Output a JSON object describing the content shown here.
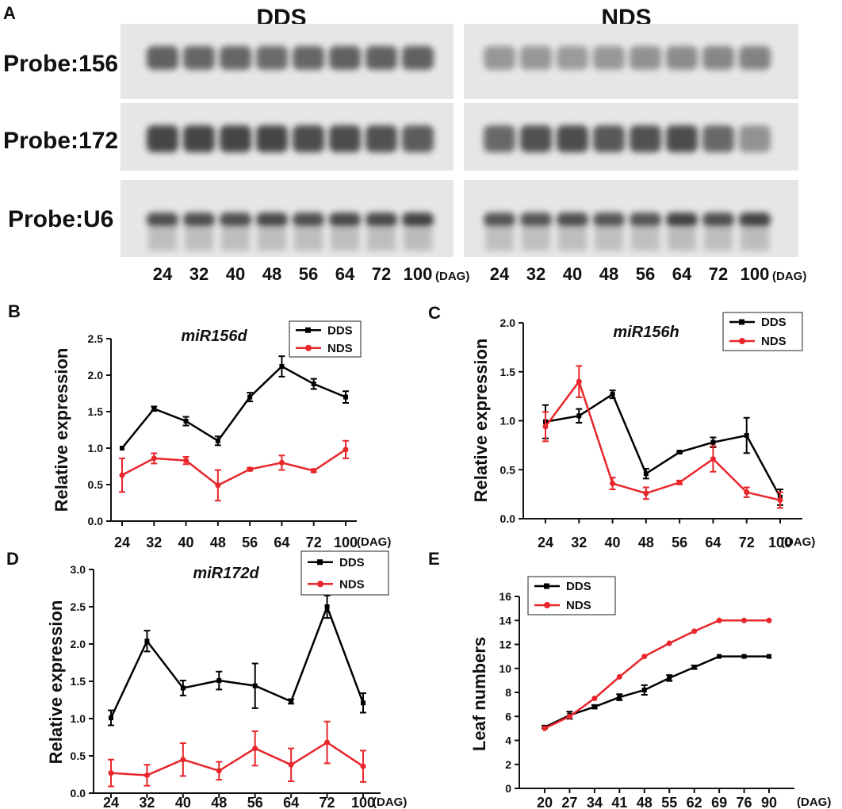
{
  "figure": {
    "panel_a": {
      "letter": "A",
      "titles": [
        "DDS",
        "NDS"
      ],
      "probes": [
        "Probe:156",
        "Probe:172",
        "Probe:U6"
      ],
      "lanes": [
        "24",
        "32",
        "40",
        "48",
        "56",
        "64",
        "72",
        "100"
      ],
      "unit": "(DAG)"
    }
  },
  "chart_data": [
    {
      "id": "B",
      "letter": "B",
      "type": "line",
      "title": "miR156d",
      "xlabel": "(DAG)",
      "ylabel": "Relative expression",
      "categories": [
        "24",
        "32",
        "40",
        "48",
        "56",
        "64",
        "72",
        "100"
      ],
      "ylim": [
        0,
        2.5
      ],
      "yticks": [
        "0.0",
        "0.5",
        "1.0",
        "1.5",
        "2.0",
        "2.5"
      ],
      "legend_position": "top-right",
      "series": [
        {
          "name": "DDS",
          "color": "#000000",
          "marker": "square",
          "values": [
            1.0,
            1.54,
            1.37,
            1.1,
            1.7,
            2.12,
            1.88,
            1.7
          ],
          "errors": [
            0.0,
            0.03,
            0.06,
            0.06,
            0.06,
            0.14,
            0.07,
            0.08
          ]
        },
        {
          "name": "NDS",
          "color": "#e8262b",
          "marker": "circle",
          "values": [
            0.63,
            0.86,
            0.83,
            0.49,
            0.71,
            0.8,
            0.69,
            0.98
          ],
          "errors": [
            0.23,
            0.07,
            0.05,
            0.21,
            0.02,
            0.1,
            0.02,
            0.12
          ]
        }
      ]
    },
    {
      "id": "C",
      "letter": "C",
      "type": "line",
      "title": "miR156h",
      "xlabel": "(DAG)",
      "ylabel": "Relative expression",
      "categories": [
        "24",
        "32",
        "40",
        "48",
        "56",
        "64",
        "72",
        "100"
      ],
      "ylim": [
        0,
        2.0
      ],
      "yticks": [
        "0.0",
        "0.5",
        "1.0",
        "1.5",
        "2.0"
      ],
      "legend_position": "top-right",
      "series": [
        {
          "name": "DDS",
          "color": "#000000",
          "marker": "square",
          "values": [
            0.99,
            1.05,
            1.27,
            0.46,
            0.68,
            0.78,
            0.85,
            0.22
          ],
          "errors": [
            0.17,
            0.07,
            0.04,
            0.05,
            0.01,
            0.05,
            0.18,
            0.08
          ]
        },
        {
          "name": "NDS",
          "color": "#e8262b",
          "marker": "circle",
          "values": [
            0.94,
            1.4,
            0.36,
            0.26,
            0.37,
            0.61,
            0.27,
            0.19
          ],
          "errors": [
            0.15,
            0.16,
            0.06,
            0.06,
            0.02,
            0.13,
            0.05,
            0.08
          ]
        }
      ]
    },
    {
      "id": "D",
      "letter": "D",
      "type": "line",
      "title": "miR172d",
      "xlabel": "(DAG)",
      "ylabel": "Relative expression",
      "categories": [
        "24",
        "32",
        "40",
        "48",
        "56",
        "64",
        "72",
        "100"
      ],
      "ylim": [
        0,
        3.0
      ],
      "yticks": [
        "0.0",
        "0.5",
        "1.0",
        "1.5",
        "2.0",
        "2.5",
        "3.0"
      ],
      "legend_position": "top-right",
      "series": [
        {
          "name": "DDS",
          "color": "#000000",
          "marker": "square",
          "values": [
            1.01,
            2.04,
            1.41,
            1.51,
            1.44,
            1.23,
            2.5,
            1.21
          ],
          "errors": [
            0.1,
            0.14,
            0.1,
            0.12,
            0.3,
            0.03,
            0.15,
            0.13
          ]
        },
        {
          "name": "NDS",
          "color": "#e8262b",
          "marker": "circle",
          "values": [
            0.27,
            0.24,
            0.45,
            0.3,
            0.6,
            0.38,
            0.68,
            0.36
          ],
          "errors": [
            0.18,
            0.14,
            0.22,
            0.12,
            0.23,
            0.22,
            0.28,
            0.21
          ]
        }
      ]
    },
    {
      "id": "E",
      "letter": "E",
      "type": "line",
      "title": "",
      "xlabel": "(DAG)",
      "ylabel": "Leaf numbers",
      "categories": [
        "20",
        "27",
        "34",
        "41",
        "48",
        "55",
        "62",
        "69",
        "76",
        "90"
      ],
      "ylim": [
        0,
        16
      ],
      "yticks": [
        "0",
        "2",
        "4",
        "6",
        "8",
        "10",
        "12",
        "14",
        "16"
      ],
      "legend_position": "top-left",
      "series": [
        {
          "name": "DDS",
          "color": "#000000",
          "marker": "square",
          "values": [
            5.1,
            6.1,
            6.8,
            7.6,
            8.2,
            9.2,
            10.1,
            11.0,
            11.0,
            11.0
          ],
          "errors": [
            0.1,
            0.3,
            0.15,
            0.25,
            0.4,
            0.25,
            0.15,
            0.0,
            0.0,
            0.0
          ]
        },
        {
          "name": "NDS",
          "color": "#e8262b",
          "marker": "circle",
          "values": [
            5.0,
            6.0,
            7.5,
            9.3,
            11.0,
            12.1,
            13.1,
            14.0,
            14.0,
            14.0
          ],
          "errors": [
            0.0,
            0.0,
            0.0,
            0.0,
            0.0,
            0.0,
            0.0,
            0.0,
            0.0,
            0.0
          ]
        }
      ]
    }
  ]
}
